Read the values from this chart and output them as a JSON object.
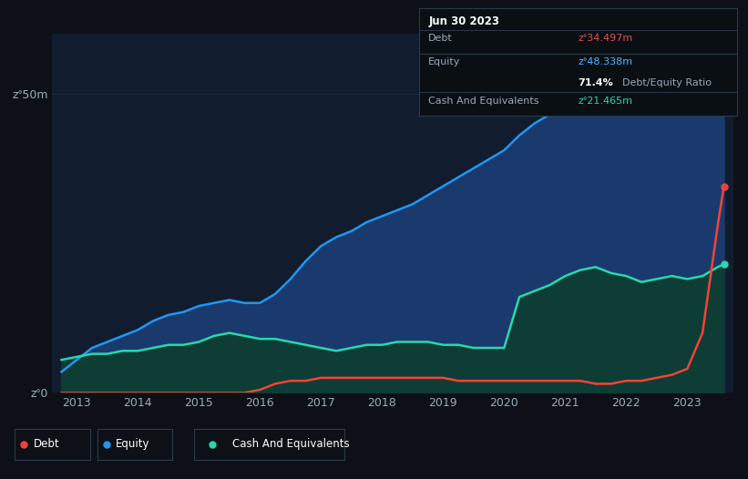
{
  "background_color": "#0d1117",
  "plot_bg_color": "#111d2e",
  "grid_color": "#1e2d3d",
  "tooltip_bg": "#0a0f14",
  "tooltip_border": "#2a3a4a",
  "tooltip_date": "Jun 30 2023",
  "tooltip_debt_label": "Debt",
  "tooltip_debt_value": "zᐤ34.497m",
  "tooltip_debt_color": "#e05252",
  "tooltip_equity_label": "Equity",
  "tooltip_equity_value": "zᐤ48.338m",
  "tooltip_equity_color": "#4db8ff",
  "tooltip_ratio_pct": "71.4%",
  "tooltip_ratio_label": "Debt/Equity Ratio",
  "tooltip_cash_label": "Cash And Equivalents",
  "tooltip_cash_value": "zᐤ21.465m",
  "tooltip_cash_color": "#26d9b0",
  "ylim": [
    0,
    60
  ],
  "ylabel_ticks": [
    0,
    50
  ],
  "ylabel_labels": [
    "zᐤ0",
    "zᐤ50m"
  ],
  "xlim_start": 2012.6,
  "xlim_end": 2023.75,
  "xtick_years": [
    2013,
    2014,
    2015,
    2016,
    2017,
    2018,
    2019,
    2020,
    2021,
    2022,
    2023
  ],
  "equity_color": "#2196f3",
  "equity_fill_color": "#1a3a6e",
  "debt_color": "#f44336",
  "cash_color": "#26d9b0",
  "cash_fill_color": "#0d3d35",
  "line_width": 1.8,
  "years": [
    2012.75,
    2013.0,
    2013.25,
    2013.5,
    2013.75,
    2014.0,
    2014.25,
    2014.5,
    2014.75,
    2015.0,
    2015.25,
    2015.5,
    2015.75,
    2016.0,
    2016.25,
    2016.5,
    2016.75,
    2017.0,
    2017.25,
    2017.5,
    2017.75,
    2018.0,
    2018.25,
    2018.5,
    2018.75,
    2019.0,
    2019.25,
    2019.5,
    2019.75,
    2020.0,
    2020.25,
    2020.5,
    2020.75,
    2021.0,
    2021.25,
    2021.5,
    2021.75,
    2022.0,
    2022.25,
    2022.5,
    2022.75,
    2023.0,
    2023.25,
    2023.5,
    2023.6
  ],
  "equity": [
    3.5,
    5.5,
    7.5,
    8.5,
    9.5,
    10.5,
    12.0,
    13.0,
    13.5,
    14.5,
    15.0,
    15.5,
    15.0,
    15.0,
    16.5,
    19.0,
    22.0,
    24.5,
    26.0,
    27.0,
    28.5,
    29.5,
    30.5,
    31.5,
    33.0,
    34.5,
    36.0,
    37.5,
    39.0,
    40.5,
    43.0,
    45.0,
    46.5,
    48.0,
    50.0,
    51.0,
    50.5,
    50.0,
    49.0,
    48.5,
    48.0,
    47.5,
    48.0,
    49.0,
    48.338
  ],
  "debt": [
    0.0,
    0.0,
    0.0,
    0.0,
    0.0,
    0.0,
    0.0,
    0.0,
    0.0,
    0.0,
    0.0,
    0.0,
    0.0,
    0.5,
    1.5,
    2.0,
    2.0,
    2.5,
    2.5,
    2.5,
    2.5,
    2.5,
    2.5,
    2.5,
    2.5,
    2.5,
    2.0,
    2.0,
    2.0,
    2.0,
    2.0,
    2.0,
    2.0,
    2.0,
    2.0,
    1.5,
    1.5,
    2.0,
    2.0,
    2.5,
    3.0,
    4.0,
    10.0,
    28.0,
    34.497
  ],
  "cash": [
    5.5,
    6.0,
    6.5,
    6.5,
    7.0,
    7.0,
    7.5,
    8.0,
    8.0,
    8.5,
    9.5,
    10.0,
    9.5,
    9.0,
    9.0,
    8.5,
    8.0,
    7.5,
    7.0,
    7.5,
    8.0,
    8.0,
    8.5,
    8.5,
    8.5,
    8.0,
    8.0,
    7.5,
    7.5,
    7.5,
    16.0,
    17.0,
    18.0,
    19.5,
    20.5,
    21.0,
    20.0,
    19.5,
    18.5,
    19.0,
    19.5,
    19.0,
    19.5,
    21.0,
    21.465
  ],
  "legend_items": [
    {
      "label": "Debt",
      "color": "#f44336"
    },
    {
      "label": "Equity",
      "color": "#2196f3"
    },
    {
      "label": "Cash And Equivalents",
      "color": "#26d9b0"
    }
  ]
}
